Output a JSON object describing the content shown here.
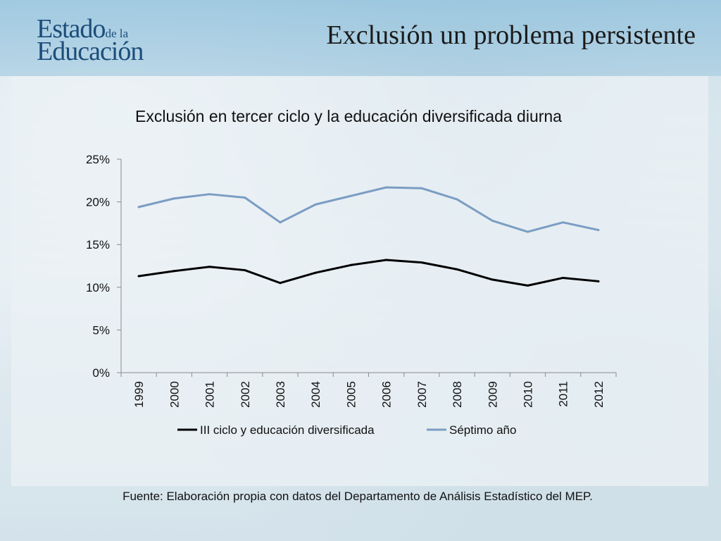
{
  "header": {
    "logo_line1": "Estado",
    "logo_small": "de la",
    "logo_line2": "Educación",
    "title": "Exclusión un problema persistente"
  },
  "chart_data": {
    "type": "line",
    "title": "Exclusión en tercer ciclo y la educación diversificada diurna",
    "categories": [
      "1999",
      "2000",
      "2001",
      "2002",
      "2003",
      "2004",
      "2005",
      "2006",
      "2007",
      "2008",
      "2009",
      "2010",
      "2011",
      "2012"
    ],
    "yticks": [
      "0%",
      "5%",
      "10%",
      "15%",
      "20%",
      "25%"
    ],
    "ylim": [
      0,
      25
    ],
    "grid": false,
    "legend": "bottom",
    "series": [
      {
        "name": "III ciclo y educación diversificada",
        "color": "#000000",
        "values": [
          11.3,
          11.9,
          12.4,
          12.0,
          10.5,
          11.7,
          12.6,
          13.2,
          12.9,
          12.1,
          10.9,
          10.2,
          11.1,
          10.7
        ]
      },
      {
        "name": "Séptimo año",
        "color": "#7b9dc3",
        "values": [
          19.4,
          20.4,
          20.9,
          20.5,
          17.6,
          19.7,
          20.7,
          21.7,
          21.6,
          20.3,
          17.8,
          16.5,
          17.6,
          16.7
        ]
      }
    ]
  },
  "source_note": "Fuente: Elaboración propia con datos del Departamento de Análisis Estadístico del MEP."
}
